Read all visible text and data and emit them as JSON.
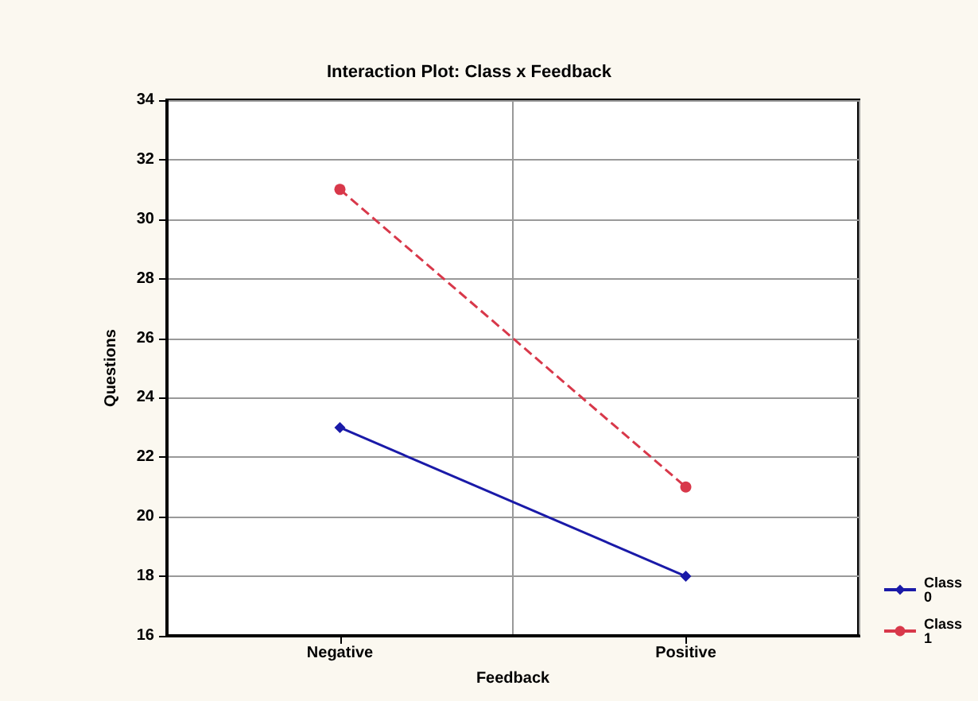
{
  "chart_data": {
    "type": "line",
    "title": "Interaction Plot: Class x Feedback",
    "xlabel": "Feedback",
    "ylabel": "Questions",
    "categories": [
      "Negative",
      "Positive"
    ],
    "series": [
      {
        "name": "Class 0",
        "color": "#1a1aa8",
        "values": [
          23,
          18
        ],
        "line_style": "solid",
        "marker": "diamond"
      },
      {
        "name": "Class 1",
        "color": "#d8384a",
        "values": [
          31,
          21
        ],
        "line_style": "dashed",
        "marker": "circle"
      }
    ],
    "ylim": [
      16,
      34
    ],
    "yticks": [
      16,
      18,
      20,
      22,
      24,
      26,
      28,
      30,
      32,
      34
    ],
    "grid": true,
    "legend": "bottom right"
  }
}
